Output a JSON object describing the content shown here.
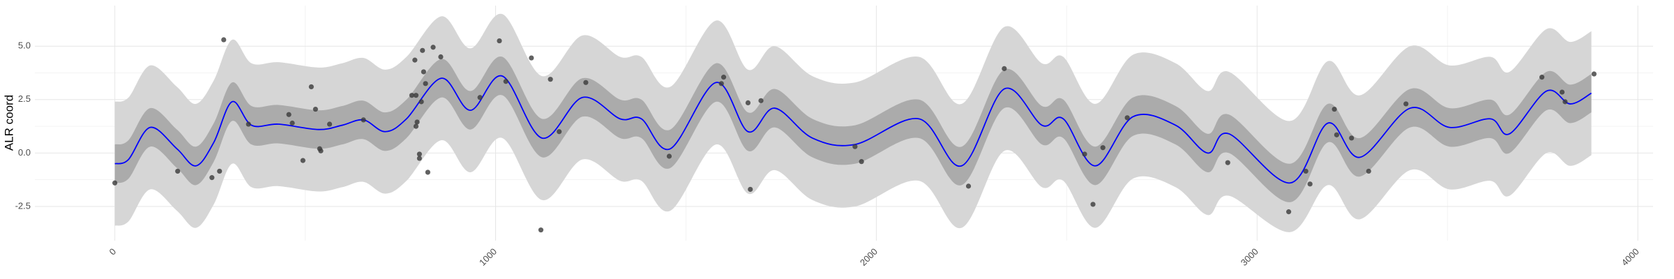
{
  "chart_data": {
    "type": "line",
    "y_label": "ALR coord",
    "xlim": [
      -210,
      4040
    ],
    "ylim": [
      -4.1,
      6.9
    ],
    "xticks": [
      0,
      1000,
      2000,
      3000,
      4000
    ],
    "yticks": [
      -2.5,
      {
        "value": 0,
        "label": "0.0"
      },
      2.5,
      {
        "value": 5,
        "label": "5.0"
      }
    ],
    "grid": true,
    "minor_grid": true,
    "x": [
      0,
      36,
      93,
      163,
      213,
      260,
      308,
      359,
      430,
      535,
      597,
      653,
      710,
      766,
      858,
      934,
      1018,
      1122,
      1228,
      1327,
      1383,
      1459,
      1579,
      1663,
      1733,
      1832,
      1944,
      2112,
      2224,
      2336,
      2435,
      2491,
      2575,
      2674,
      2786,
      2870,
      2926,
      3087,
      3186,
      3270,
      3402,
      3505,
      3613,
      3663,
      3760,
      3822,
      3878
    ],
    "values": [
      -0.5,
      -0.3,
      1.2,
      0.2,
      -0.6,
      0.5,
      2.4,
      1.3,
      1.35,
      1.1,
      1.3,
      1.55,
      1.0,
      1.6,
      3.5,
      2.0,
      3.6,
      0.7,
      2.6,
      1.6,
      1.6,
      0.2,
      3.3,
      1.0,
      2.1,
      0.7,
      0.4,
      1.6,
      -0.6,
      3.0,
      1.3,
      1.6,
      -0.6,
      1.7,
      1.3,
      0.0,
      0.9,
      -1.4,
      1.4,
      -0.2,
      2.1,
      1.2,
      1.6,
      0.9,
      2.9,
      2.3,
      2.8
    ],
    "color": "#0000ff",
    "bands": [
      {
        "color": "#d6d6d6",
        "lower": [
          -3.4,
          -3.2,
          -1.7,
          -2.7,
          -3.5,
          -2.4,
          -0.5,
          -1.6,
          -1.55,
          -1.8,
          -1.6,
          -1.35,
          -1.9,
          -1.3,
          0.6,
          -0.9,
          0.7,
          -2.2,
          -0.3,
          -1.3,
          -1.3,
          -2.7,
          0.4,
          -1.9,
          -0.8,
          -2.2,
          -2.5,
          -1.3,
          -3.5,
          0.1,
          -1.6,
          -1.3,
          -3.5,
          -1.2,
          -1.6,
          -2.9,
          -2.0,
          -3.7,
          -1.5,
          -3.1,
          -0.8,
          -1.7,
          -1.3,
          -2.0,
          0.0,
          -0.6,
          -0.1
        ],
        "upper": [
          2.4,
          2.6,
          4.1,
          3.1,
          2.3,
          3.4,
          5.3,
          4.2,
          4.25,
          4.0,
          4.2,
          4.45,
          3.9,
          4.5,
          6.4,
          4.9,
          6.5,
          3.6,
          5.5,
          4.5,
          4.5,
          3.1,
          6.2,
          3.9,
          5.0,
          3.6,
          3.3,
          4.5,
          2.3,
          5.9,
          4.2,
          4.5,
          2.3,
          4.6,
          4.2,
          2.9,
          3.8,
          1.5,
          4.3,
          2.7,
          5.0,
          4.1,
          4.5,
          3.8,
          5.8,
          5.2,
          5.7
        ]
      },
      {
        "color": "#ababab",
        "lower": [
          -1.4,
          -1.2,
          0.3,
          -0.7,
          -1.5,
          -0.4,
          1.5,
          0.4,
          0.45,
          0.2,
          0.4,
          0.65,
          0.1,
          0.7,
          2.6,
          1.1,
          2.7,
          -0.2,
          1.7,
          0.7,
          0.7,
          -0.7,
          2.4,
          0.1,
          1.2,
          -0.2,
          -0.5,
          0.7,
          -1.5,
          2.1,
          0.4,
          0.7,
          -1.5,
          0.8,
          0.4,
          -0.9,
          0.0,
          -2.3,
          0.5,
          -1.1,
          1.2,
          0.3,
          0.7,
          0.0,
          2.0,
          1.4,
          1.9
        ],
        "upper": [
          0.4,
          0.6,
          2.1,
          1.1,
          0.3,
          1.4,
          3.3,
          2.2,
          2.25,
          2.0,
          2.2,
          2.45,
          1.9,
          2.5,
          4.4,
          2.9,
          4.5,
          1.6,
          3.5,
          2.5,
          2.5,
          1.1,
          4.2,
          1.9,
          3.0,
          1.6,
          1.3,
          2.5,
          0.3,
          3.9,
          2.2,
          2.5,
          0.3,
          2.6,
          2.2,
          0.9,
          1.8,
          -0.5,
          2.3,
          0.7,
          3.0,
          2.1,
          2.5,
          1.8,
          3.8,
          3.2,
          3.7
        ]
      }
    ],
    "points": {
      "color": "#3a3a3a",
      "x": [
        0,
        165,
        255,
        275,
        286,
        351,
        457,
        466,
        494,
        516,
        527,
        538,
        541,
        564,
        653,
        780,
        791,
        788,
        794,
        791,
        800,
        800,
        808,
        805,
        811,
        816,
        822,
        836,
        856,
        959,
        1010,
        1027,
        1094,
        1119,
        1144,
        1167,
        1237,
        1456,
        1593,
        1599,
        1663,
        1669,
        1697,
        1944,
        1961,
        2242,
        2336,
        2547,
        2569,
        2595,
        2659,
        2923,
        3083,
        3128,
        3139,
        3203,
        3209,
        3248,
        3293,
        3391,
        3748,
        3801,
        3809,
        3885
      ],
      "y": [
        -1.4,
        -0.85,
        -1.15,
        -0.85,
        5.3,
        1.35,
        1.8,
        1.4,
        -0.35,
        3.1,
        2.05,
        0.2,
        0.1,
        1.35,
        1.55,
        2.7,
        2.7,
        4.35,
        1.45,
        1.25,
        -0.05,
        -0.25,
        4.8,
        2.4,
        3.8,
        3.25,
        -0.9,
        4.95,
        4.5,
        2.6,
        5.25,
        3.35,
        4.45,
        -3.6,
        3.45,
        1.0,
        3.3,
        -0.15,
        3.25,
        3.55,
        2.35,
        -1.7,
        2.45,
        0.3,
        -0.4,
        -1.55,
        3.95,
        -0.05,
        -2.4,
        0.25,
        1.65,
        -0.45,
        -2.75,
        -0.85,
        -1.45,
        2.05,
        0.85,
        0.7,
        -0.85,
        2.3,
        3.55,
        2.85,
        2.4,
        3.7
      ]
    }
  }
}
